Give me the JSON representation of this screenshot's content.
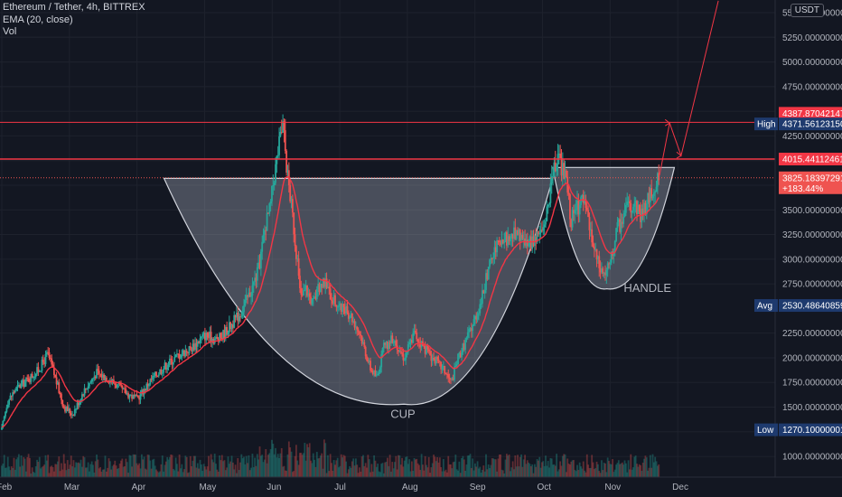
{
  "legend": {
    "symbol": "Ethereum / Tether, 4h, BITTREX",
    "indicator": "EMA (20, close)",
    "volume": "Vol"
  },
  "currency": "USDT",
  "colors": {
    "background": "#131722",
    "grid": "#1e222d",
    "up": "#26a69a",
    "down": "#ef5350",
    "ema": "#f23645",
    "drawing": "#f23645",
    "cup_fill": "rgba(190,196,210,0.32)",
    "cup_stroke": "#d1d4dc",
    "label_bg": "#1e3a6e"
  },
  "chart_data": {
    "type": "candlestick",
    "x_tick_labels": [
      "Feb",
      "Mar",
      "Apr",
      "May",
      "Jun",
      "Jul",
      "Aug",
      "Sep",
      "Oct",
      "Nov",
      "Dec"
    ],
    "y_tick_labels": [
      "5500.00000000",
      "5250.00000000",
      "5000.00000000",
      "4750.00000000",
      "4250.00000000",
      "3500.00000000",
      "3250.00000000",
      "3000.00000000",
      "2750.00000000",
      "2250.00000000",
      "2000.00000000",
      "1750.00000000",
      "1500.00000000",
      "1000.00000000"
    ],
    "y_ticks": [
      5500,
      5250,
      5000,
      4750,
      4250,
      3500,
      3250,
      3000,
      2750,
      2250,
      2000,
      1750,
      1500,
      1000
    ],
    "y_range": [
      790,
      5620
    ],
    "x_range_months": [
      1.0,
      12.0
    ],
    "price_path": [
      [
        1.0,
        1270
      ],
      [
        1.08,
        1550
      ],
      [
        1.2,
        1680
      ],
      [
        1.35,
        1760
      ],
      [
        1.55,
        1880
      ],
      [
        1.68,
        2040
      ],
      [
        1.78,
        1820
      ],
      [
        1.92,
        1500
      ],
      [
        2.05,
        1430
      ],
      [
        2.2,
        1650
      ],
      [
        2.4,
        1850
      ],
      [
        2.6,
        1780
      ],
      [
        2.8,
        1660
      ],
      [
        3.0,
        1580
      ],
      [
        3.2,
        1770
      ],
      [
        3.4,
        1910
      ],
      [
        3.6,
        2020
      ],
      [
        3.8,
        2100
      ],
      [
        4.0,
        2230
      ],
      [
        4.2,
        2180
      ],
      [
        4.4,
        2340
      ],
      [
        4.55,
        2480
      ],
      [
        4.7,
        2700
      ],
      [
        4.8,
        2900
      ],
      [
        4.9,
        3350
      ],
      [
        4.97,
        3520
      ],
      [
        5.02,
        3800
      ],
      [
        5.1,
        4150
      ],
      [
        5.16,
        4371
      ],
      [
        5.22,
        3900
      ],
      [
        5.3,
        3450
      ],
      [
        5.38,
        2900
      ],
      [
        5.42,
        2600
      ],
      [
        5.5,
        2700
      ],
      [
        5.6,
        2550
      ],
      [
        5.75,
        2800
      ],
      [
        5.85,
        2650
      ],
      [
        6.0,
        2500
      ],
      [
        6.15,
        2450
      ],
      [
        6.3,
        2250
      ],
      [
        6.45,
        1900
      ],
      [
        6.55,
        1800
      ],
      [
        6.65,
        2100
      ],
      [
        6.8,
        2200
      ],
      [
        6.95,
        2000
      ],
      [
        7.1,
        2250
      ],
      [
        7.25,
        2100
      ],
      [
        7.4,
        1980
      ],
      [
        7.55,
        1870
      ],
      [
        7.65,
        1750
      ],
      [
        7.75,
        2000
      ],
      [
        7.85,
        2150
      ],
      [
        8.0,
        2400
      ],
      [
        8.1,
        2600
      ],
      [
        8.2,
        2900
      ],
      [
        8.3,
        3100
      ],
      [
        8.45,
        3200
      ],
      [
        8.6,
        3250
      ],
      [
        8.8,
        3150
      ],
      [
        9.0,
        3300
      ],
      [
        9.1,
        3600
      ],
      [
        9.18,
        3950
      ],
      [
        9.25,
        3980
      ],
      [
        9.35,
        3800
      ],
      [
        9.42,
        3400
      ],
      [
        9.5,
        3500
      ],
      [
        9.6,
        3600
      ],
      [
        9.7,
        3300
      ],
      [
        9.78,
        3050
      ],
      [
        9.85,
        2900
      ],
      [
        9.92,
        2850
      ],
      [
        10.0,
        2950
      ],
      [
        10.1,
        3300
      ],
      [
        10.25,
        3500
      ],
      [
        10.35,
        3600
      ],
      [
        10.45,
        3450
      ],
      [
        10.55,
        3580
      ],
      [
        10.65,
        3750
      ],
      [
        10.73,
        3825
      ]
    ],
    "ema_period": 20,
    "levels": {
      "high": {
        "label": "High",
        "value": "4371.56123150"
      },
      "resistance_upper": {
        "value": "4387.87042147"
      },
      "resistance_lower": {
        "value": "4015.44112461"
      },
      "last": {
        "value": "3825.18397291",
        "change": "+183.44%"
      },
      "avg": {
        "label": "Avg",
        "value": "2530.48640859"
      },
      "low": {
        "label": "Low",
        "value": "1270.10000001"
      }
    },
    "projection_path": [
      [
        10.73,
        3850
      ],
      [
        10.88,
        4380
      ],
      [
        11.05,
        4050
      ],
      [
        11.6,
        5620
      ]
    ],
    "cup": {
      "left": [
        3.4,
        3820
      ],
      "bottom": [
        6.95,
        1530
      ],
      "right": [
        9.15,
        3820
      ]
    },
    "handle": {
      "left": [
        9.15,
        3930
      ],
      "bottom": [
        9.95,
        2700
      ],
      "right": [
        10.95,
        3930
      ]
    },
    "annotations": {
      "cup": "CUP",
      "handle": "HANDLE"
    }
  }
}
